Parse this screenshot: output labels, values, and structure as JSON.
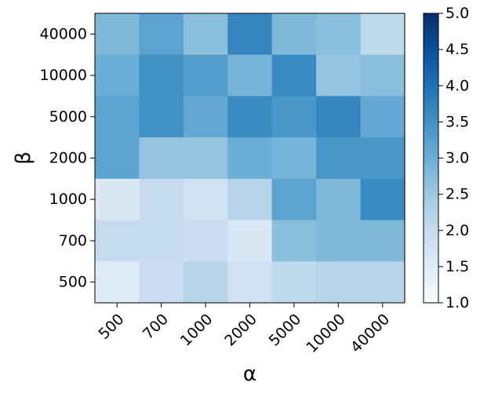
{
  "chart_data": {
    "type": "heatmap",
    "title": "",
    "xlabel": "α",
    "ylabel": "β",
    "x": [
      "500",
      "700",
      "1000",
      "2000",
      "5000",
      "10000",
      "40000"
    ],
    "y": [
      "40000",
      "10000",
      "5000",
      "2000",
      "1000",
      "700",
      "500"
    ],
    "values": [
      [
        2.8,
        3.2,
        2.7,
        3.7,
        2.8,
        2.7,
        2.1
      ],
      [
        3.0,
        3.5,
        3.3,
        2.9,
        3.6,
        2.6,
        2.7
      ],
      [
        3.2,
        3.5,
        3.1,
        3.6,
        3.4,
        3.7,
        3.1
      ],
      [
        3.2,
        2.6,
        2.6,
        3.0,
        2.9,
        3.4,
        3.4
      ],
      [
        1.6,
        2.0,
        1.8,
        2.2,
        3.2,
        2.8,
        3.6
      ],
      [
        2.0,
        2.0,
        1.9,
        1.6,
        2.7,
        2.8,
        2.8
      ],
      [
        1.5,
        1.9,
        2.2,
        1.8,
        2.1,
        2.2,
        2.2
      ]
    ],
    "colorbar": {
      "min": 1.0,
      "max": 5.0,
      "ticks": [
        "1.0",
        "1.5",
        "2.0",
        "2.5",
        "3.0",
        "3.5",
        "4.0",
        "4.5",
        "5.0"
      ],
      "colormap": "Blues",
      "colors": [
        "#f7fbff",
        "#deebf7",
        "#c6dbef",
        "#9ecae1",
        "#6baed6",
        "#4292c6",
        "#2171b5",
        "#08519c",
        "#08306b"
      ]
    },
    "grid": false
  }
}
